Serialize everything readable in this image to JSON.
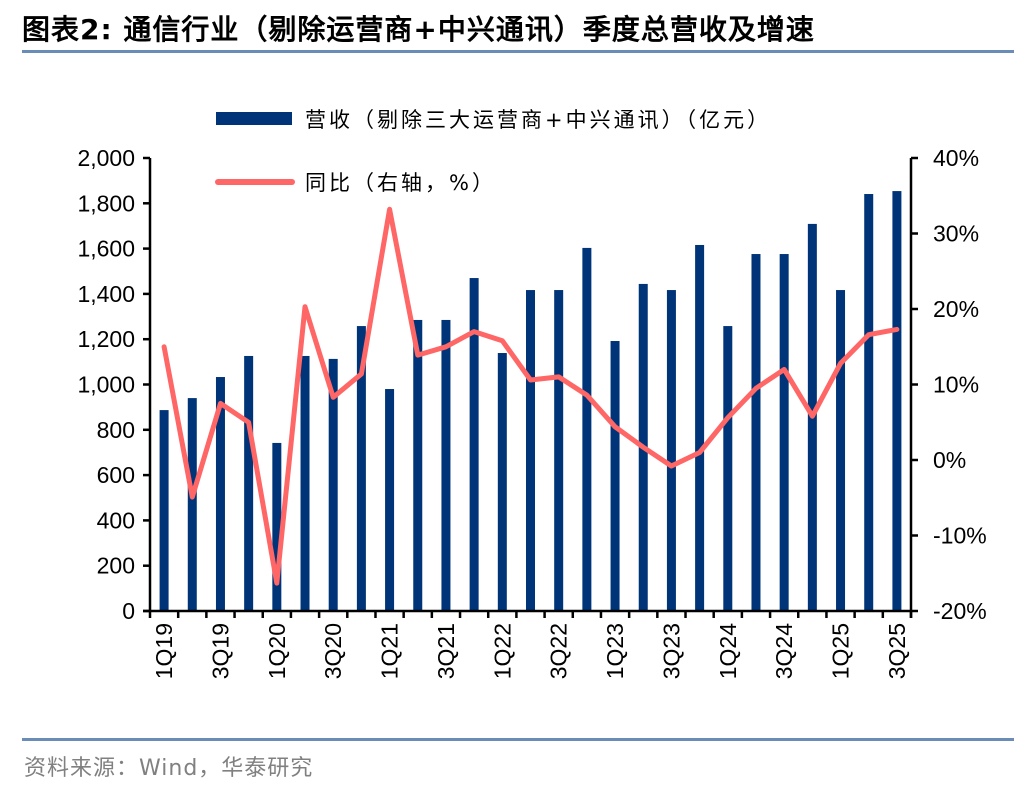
{
  "header": {
    "title": "图表2:  通信行业（剔除运营商+中兴通讯）季度总营收及增速"
  },
  "footer": {
    "source": "资料来源：Wind，华泰研究"
  },
  "colors": {
    "bar": "#003478",
    "line": "#ff6666",
    "rule": "#6a8db8",
    "axis": "#000000"
  },
  "chart_data": {
    "type": "bar",
    "title": "通信行业（剔除运营商+中兴通讯）季度总营收及增速",
    "categories": [
      "1Q19",
      "2Q19",
      "3Q19",
      "4Q19",
      "1Q20",
      "2Q20",
      "3Q20",
      "4Q20",
      "1Q21",
      "2Q21",
      "3Q21",
      "4Q21",
      "1Q22",
      "2Q22",
      "3Q22",
      "4Q22",
      "1Q23",
      "2Q23",
      "3Q23",
      "4Q23",
      "1Q24",
      "2Q24",
      "3Q24",
      "4Q24",
      "1Q25",
      "2Q25",
      "3Q25"
    ],
    "tick_labels": [
      "1Q19",
      "3Q19",
      "1Q20",
      "3Q20",
      "1Q21",
      "3Q21",
      "1Q22",
      "3Q22",
      "1Q23",
      "3Q23",
      "1Q24",
      "3Q24",
      "1Q25",
      "3Q25"
    ],
    "series": [
      {
        "name": "营收（剔除三大运营商+中兴通讯）（亿元）",
        "type": "bar",
        "axis": "left",
        "values": [
          887,
          940,
          1033,
          1126,
          742,
          1126,
          1113,
          1258,
          980,
          1285,
          1285,
          1470,
          1139,
          1417,
          1417,
          1603,
          1192,
          1444,
          1417,
          1616,
          1258,
          1576,
          1576,
          1709,
          1417,
          1841,
          1854
        ]
      },
      {
        "name": "同比（右轴，%）",
        "type": "line",
        "axis": "right",
        "values": [
          15.0,
          -4.9,
          7.5,
          5.0,
          -16.3,
          20.3,
          8.3,
          11.4,
          33.2,
          13.9,
          15.0,
          17.0,
          15.8,
          10.6,
          11.0,
          8.6,
          4.4,
          1.7,
          -0.8,
          1.0,
          5.6,
          9.5,
          12.0,
          5.8,
          12.8,
          16.6,
          17.3
        ]
      }
    ],
    "left_axis": {
      "ylim": [
        0,
        2000
      ],
      "ticks": [
        0,
        200,
        400,
        600,
        800,
        1000,
        1200,
        1400,
        1600,
        1800,
        2000
      ],
      "tick_labels": [
        "0",
        "200",
        "400",
        "600",
        "800",
        "1,000",
        "1,200",
        "1,400",
        "1,600",
        "1,800",
        "2,000"
      ]
    },
    "right_axis": {
      "ylim": [
        -20,
        40
      ],
      "ticks": [
        -20,
        -10,
        0,
        10,
        20,
        30,
        40
      ],
      "tick_labels": [
        "-20%",
        "-10%",
        "0%",
        "10%",
        "20%",
        "30%",
        "40%"
      ]
    },
    "legend": {
      "placement": "top-center",
      "entries": [
        "营收（剔除三大运营商+中兴通讯）（亿元）",
        "同比（右轴，%）"
      ]
    },
    "grid": false,
    "xlabel": "",
    "ylabel": ""
  }
}
